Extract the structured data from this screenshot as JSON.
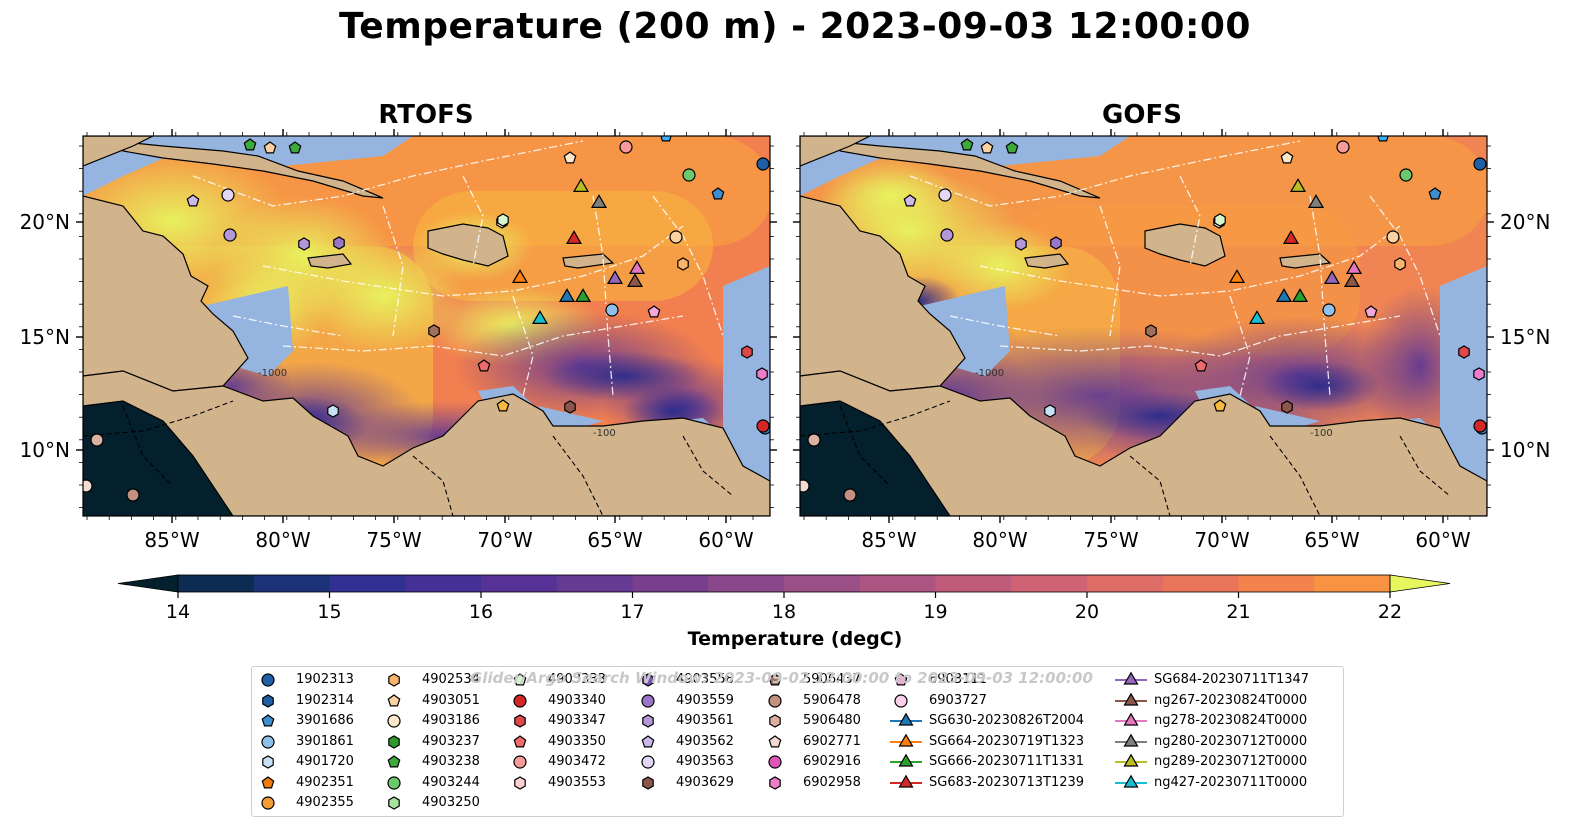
{
  "title": "Temperature (200 m) - 2023-09-03 12:00:00",
  "panels": [
    {
      "title": "RTOFS"
    },
    {
      "title": "GOFS"
    }
  ],
  "axes": {
    "x_ticks": [
      "85°W",
      "80°W",
      "75°W",
      "70°W",
      "65°W",
      "60°W"
    ],
    "y_ticks": [
      "20°N",
      "15°N",
      "10°N"
    ]
  },
  "colorbar": {
    "label": "Temperature (degC)",
    "ticks": [
      "14",
      "15",
      "16",
      "17",
      "18",
      "19",
      "20",
      "21",
      "22"
    ],
    "colors": [
      "#04202d",
      "#0d2c52",
      "#1c3278",
      "#312f91",
      "#453095",
      "#563296",
      "#653a93",
      "#773f8e",
      "#8a488a",
      "#9b4f87",
      "#ad5582",
      "#bf5c7c",
      "#cf6373",
      "#de6c67",
      "#ea765a",
      "#f3824d",
      "#f89343",
      "#f9a63e",
      "#f8bb3e",
      "#f5d043",
      "#e7f55f"
    ],
    "extend": "both"
  },
  "map_labels": {
    "contour_1000": "-1000",
    "contour_100": "-100"
  },
  "legend": {
    "watermark": "Glider/Argo Search Window: 2023-09-02 12:00:00 to 2023-09-03 12:00:00",
    "items": [
      {
        "label": "1902313",
        "marker": "circle",
        "color": "#1f5fa8"
      },
      {
        "label": "1902314",
        "marker": "hexagon",
        "color": "#1f5fa8"
      },
      {
        "label": "3901686",
        "marker": "pentagon",
        "color": "#3f8fd0"
      },
      {
        "label": "3901861",
        "marker": "circle",
        "color": "#8ec0ea"
      },
      {
        "label": "4901720",
        "marker": "hexagon",
        "color": "#c7e2f7"
      },
      {
        "label": "4902351",
        "marker": "pentagon",
        "color": "#ef7a0e"
      },
      {
        "label": "4902355",
        "marker": "circle",
        "color": "#f59b36"
      },
      {
        "label": "4902534",
        "marker": "hexagon",
        "color": "#f9b56a"
      },
      {
        "label": "4903051",
        "marker": "pentagon",
        "color": "#fdd2a2"
      },
      {
        "label": "4903186",
        "marker": "circle",
        "color": "#fde8cc"
      },
      {
        "label": "4903237",
        "marker": "hexagon",
        "color": "#2e9a2e"
      },
      {
        "label": "4903238",
        "marker": "pentagon",
        "color": "#3caa3c"
      },
      {
        "label": "4903244",
        "marker": "circle",
        "color": "#6cc86c"
      },
      {
        "label": "4903250",
        "marker": "hexagon",
        "color": "#a6e3a0"
      },
      {
        "label": "4903333",
        "marker": "pentagon",
        "color": "#d7f5cf"
      },
      {
        "label": "4903340",
        "marker": "circle",
        "color": "#d62728"
      },
      {
        "label": "4903347",
        "marker": "hexagon",
        "color": "#e04848"
      },
      {
        "label": "4903350",
        "marker": "pentagon",
        "color": "#ef6a6a"
      },
      {
        "label": "4903472",
        "marker": "circle",
        "color": "#f59b9b"
      },
      {
        "label": "4903553",
        "marker": "hexagon",
        "color": "#fad0d0"
      },
      {
        "label": "4903558",
        "marker": "hexagon",
        "color": "#7b54b3"
      },
      {
        "label": "4903559",
        "marker": "circle",
        "color": "#9a76c8"
      },
      {
        "label": "4903561",
        "marker": "hexagon",
        "color": "#b397d8"
      },
      {
        "label": "4903562",
        "marker": "pentagon",
        "color": "#cdb8ea"
      },
      {
        "label": "4903563",
        "marker": "circle",
        "color": "#e3d7f5"
      },
      {
        "label": "4903629",
        "marker": "hexagon",
        "color": "#8c564b"
      },
      {
        "label": "5906437",
        "marker": "pentagon",
        "color": "#a0705e"
      },
      {
        "label": "5906478",
        "marker": "circle",
        "color": "#c49080"
      },
      {
        "label": "5906480",
        "marker": "hexagon",
        "color": "#dbb2a2"
      },
      {
        "label": "6902771",
        "marker": "pentagon",
        "color": "#f4dad0"
      },
      {
        "label": "6902916",
        "marker": "circle",
        "color": "#e056b8"
      },
      {
        "label": "6902958",
        "marker": "hexagon",
        "color": "#ea7ecb"
      },
      {
        "label": "6903111",
        "marker": "pentagon",
        "color": "#f3a7db"
      },
      {
        "label": "6903727",
        "marker": "circle",
        "color": "#fad0ec"
      },
      {
        "label": "SG630-20230826T2004",
        "marker": "triangle-line",
        "color": "#1f77b4"
      },
      {
        "label": "SG664-20230719T1323",
        "marker": "triangle-line",
        "color": "#ff7f0e"
      },
      {
        "label": "SG666-20230711T1331",
        "marker": "triangle-line",
        "color": "#2ca02c"
      },
      {
        "label": "SG683-20230713T1239",
        "marker": "triangle-line",
        "color": "#d62728"
      },
      {
        "label": "SG684-20230711T1347",
        "marker": "triangle-line",
        "color": "#9467bd"
      },
      {
        "label": "ng267-20230824T0000",
        "marker": "triangle-line",
        "color": "#8c564b"
      },
      {
        "label": "ng278-20230824T0000",
        "marker": "triangle-line",
        "color": "#e377c2"
      },
      {
        "label": "ng280-20230712T0000",
        "marker": "triangle-line",
        "color": "#7f7f7f"
      },
      {
        "label": "ng289-20230712T0000",
        "marker": "triangle-line",
        "color": "#bcbd22"
      },
      {
        "label": "ng427-20230711T0000",
        "marker": "triangle-line",
        "color": "#17becf"
      }
    ]
  },
  "colors": {
    "land": "#d2b48c",
    "shelf": "#95b5e0",
    "coast": "#000000"
  }
}
